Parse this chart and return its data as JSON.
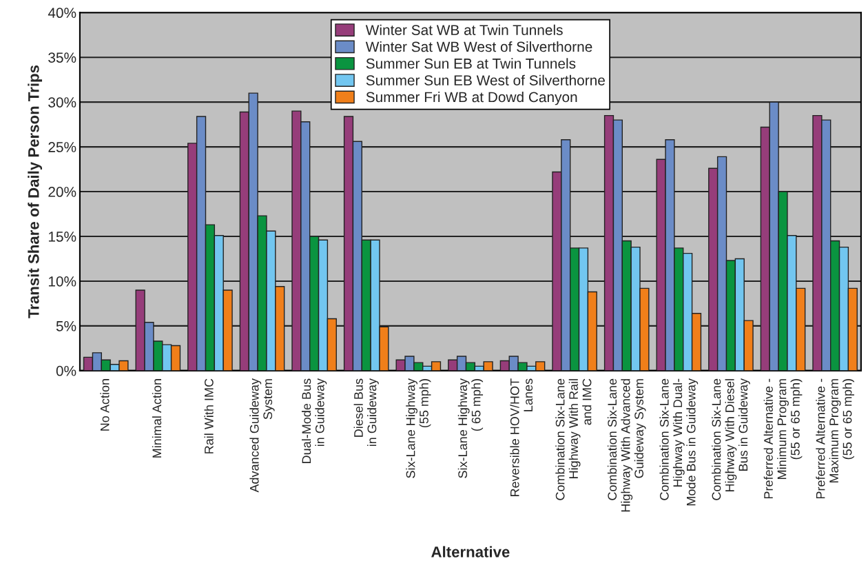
{
  "chart_data": {
    "type": "bar",
    "xlabel": "Alternative",
    "ylabel": "Transit Share of Daily Person Trips",
    "categories": [
      "No Action",
      "Minimal Action",
      "Rail With IMC",
      "Advanced Guideway\nSystem",
      "Dual-Mode Bus\nin Guideway",
      "Diesel Bus\nin Guideway",
      "Six-Lane Highway\n(55 mph)",
      "Six-Lane Highway\n( 65 mph)",
      "Reversible HOV/HOT\nLanes",
      "Combination Six-Lane\nHighway With Rail\nand IMC",
      "Combination Six-Lane\nHighway With Advanced\nGuideway System",
      "Combination Six-Lane\nHighway With Dual-\nMode Bus in Guideway",
      "Combination Six-Lane\nHighway With Diesel\nBus in Guideway",
      "Preferred Alternative -\nMinimum Program\n(55 or 65 mph)",
      "Preferred Alternative -\nMaximum Program\n(55 or 65 mph)"
    ],
    "series": [
      {
        "name": "Winter Sat WB at Twin Tunnels",
        "color": "#963d7a",
        "values": [
          1.5,
          9.0,
          25.4,
          28.9,
          29.0,
          28.4,
          1.2,
          1.2,
          1.1,
          22.2,
          28.5,
          23.6,
          22.6,
          27.2,
          28.5
        ]
      },
      {
        "name": "Winter Sat WB West of Silverthorne",
        "color": "#6b8cc7",
        "values": [
          2.0,
          5.4,
          28.4,
          31.0,
          27.8,
          25.6,
          1.6,
          1.6,
          1.6,
          25.8,
          28.0,
          25.8,
          23.9,
          30.0,
          28.0
        ]
      },
      {
        "name": "Summer Sun EB at Twin Tunnels",
        "color": "#0a9440",
        "values": [
          1.2,
          3.3,
          16.3,
          17.3,
          15.0,
          14.6,
          0.9,
          0.9,
          0.9,
          13.7,
          14.5,
          13.7,
          12.3,
          20.0,
          14.5
        ]
      },
      {
        "name": "Summer Sun EB West of Silverthorne",
        "color": "#72c6f0",
        "values": [
          0.7,
          2.9,
          15.1,
          15.6,
          14.6,
          14.6,
          0.5,
          0.5,
          0.5,
          13.7,
          13.8,
          13.1,
          12.5,
          15.1,
          13.8
        ]
      },
      {
        "name": "Summer Fri WB at Dowd Canyon",
        "color": "#f07f1a",
        "values": [
          1.1,
          2.8,
          9.0,
          9.4,
          5.8,
          4.9,
          1.0,
          1.0,
          1.0,
          8.8,
          9.2,
          6.4,
          5.6,
          9.2,
          9.2
        ]
      }
    ],
    "ylim": [
      0,
      40
    ],
    "yticks": [
      {
        "value": 0,
        "label": "0%"
      },
      {
        "value": 5,
        "label": "5%"
      },
      {
        "value": 10,
        "label": "10%"
      },
      {
        "value": 15,
        "label": "15%"
      },
      {
        "value": 20,
        "label": "20%"
      },
      {
        "value": 25,
        "label": "25%"
      },
      {
        "value": 30,
        "label": "30%"
      },
      {
        "value": 35,
        "label": "35%"
      },
      {
        "value": 40,
        "label": "40%"
      }
    ],
    "grid": "y",
    "legend": "top"
  }
}
